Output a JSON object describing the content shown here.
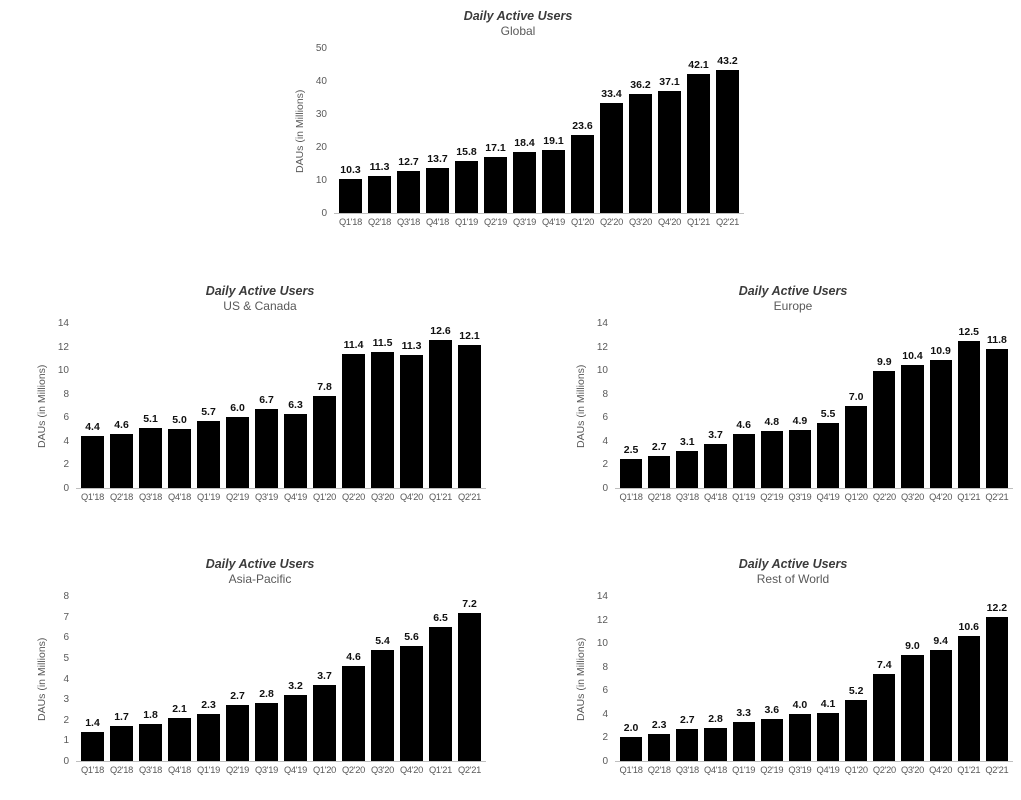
{
  "colors": {
    "background": "#ffffff",
    "bar": "#000000",
    "value_label": "#111111",
    "axis_text": "#595959",
    "title_text": "#3b3b3b",
    "axis_line": "#bfbfbf"
  },
  "chart_data": [
    {
      "id": "global",
      "type": "bar",
      "title": "Daily Active Users",
      "subtitle": "Global",
      "xlabel": "",
      "ylabel": "DAUs (in Millions)",
      "categories": [
        "Q1'18",
        "Q2'18",
        "Q3'18",
        "Q4'18",
        "Q1'19",
        "Q2'19",
        "Q3'19",
        "Q4'19",
        "Q1'20",
        "Q2'20",
        "Q3'20",
        "Q4'20",
        "Q1'21",
        "Q2'21"
      ],
      "values": [
        10.3,
        11.3,
        12.7,
        13.7,
        15.8,
        17.1,
        18.4,
        19.1,
        23.6,
        33.4,
        36.2,
        37.1,
        42.1,
        43.2
      ],
      "ylim": [
        0,
        50
      ],
      "ystep": 10,
      "grid": false,
      "legend": "none",
      "bar_color": "#000000",
      "label_format": "one_decimal"
    },
    {
      "id": "us-canada",
      "type": "bar",
      "title": "Daily Active Users",
      "subtitle": "US & Canada",
      "xlabel": "",
      "ylabel": "DAUs (in Millions)",
      "categories": [
        "Q1'18",
        "Q2'18",
        "Q3'18",
        "Q4'18",
        "Q1'19",
        "Q2'19",
        "Q3'19",
        "Q4'19",
        "Q1'20",
        "Q2'20",
        "Q3'20",
        "Q4'20",
        "Q1'21",
        "Q2'21"
      ],
      "values": [
        4.4,
        4.6,
        5.1,
        5.0,
        5.7,
        6.0,
        6.7,
        6.3,
        7.8,
        11.4,
        11.5,
        11.3,
        12.6,
        12.1
      ],
      "ylim": [
        0,
        14
      ],
      "ystep": 2,
      "grid": false,
      "legend": "none",
      "bar_color": "#000000",
      "label_format": "one_decimal"
    },
    {
      "id": "europe",
      "type": "bar",
      "title": "Daily Active Users",
      "subtitle": "Europe",
      "xlabel": "",
      "ylabel": "DAUs (in Millions)",
      "categories": [
        "Q1'18",
        "Q2'18",
        "Q3'18",
        "Q4'18",
        "Q1'19",
        "Q2'19",
        "Q3'19",
        "Q4'19",
        "Q1'20",
        "Q2'20",
        "Q3'20",
        "Q4'20",
        "Q1'21",
        "Q2'21"
      ],
      "values": [
        2.5,
        2.7,
        3.1,
        3.7,
        4.6,
        4.8,
        4.9,
        5.5,
        7.0,
        9.9,
        10.4,
        10.9,
        12.5,
        11.8
      ],
      "ylim": [
        0,
        14
      ],
      "ystep": 2,
      "grid": false,
      "legend": "none",
      "bar_color": "#000000",
      "label_format": "one_decimal"
    },
    {
      "id": "asia-pacific",
      "type": "bar",
      "title": "Daily Active Users",
      "subtitle": "Asia-Pacific",
      "xlabel": "",
      "ylabel": "DAUs (in Millions)",
      "categories": [
        "Q1'18",
        "Q2'18",
        "Q3'18",
        "Q4'18",
        "Q1'19",
        "Q2'19",
        "Q3'19",
        "Q4'19",
        "Q1'20",
        "Q2'20",
        "Q3'20",
        "Q4'20",
        "Q1'21",
        "Q2'21"
      ],
      "values": [
        1.4,
        1.7,
        1.8,
        2.1,
        2.3,
        2.7,
        2.8,
        3.2,
        3.7,
        4.6,
        5.4,
        5.6,
        6.5,
        7.2
      ],
      "ylim": [
        0,
        8
      ],
      "ystep": 1,
      "grid": false,
      "legend": "none",
      "bar_color": "#000000",
      "label_format": "one_decimal"
    },
    {
      "id": "rest-of-world",
      "type": "bar",
      "title": "Daily Active Users",
      "subtitle": "Rest of World",
      "xlabel": "",
      "ylabel": "DAUs (in Millions)",
      "categories": [
        "Q1'18",
        "Q2'18",
        "Q3'18",
        "Q4'18",
        "Q1'19",
        "Q2'19",
        "Q3'19",
        "Q4'19",
        "Q1'20",
        "Q2'20",
        "Q3'20",
        "Q4'20",
        "Q1'21",
        "Q2'21"
      ],
      "values": [
        2.0,
        2.3,
        2.7,
        2.8,
        3.3,
        3.6,
        4.0,
        4.1,
        5.2,
        7.4,
        9.0,
        9.4,
        10.6,
        12.2
      ],
      "ylim": [
        0,
        14
      ],
      "ystep": 2,
      "grid": false,
      "legend": "none",
      "bar_color": "#000000",
      "label_format": "one_decimal"
    }
  ]
}
